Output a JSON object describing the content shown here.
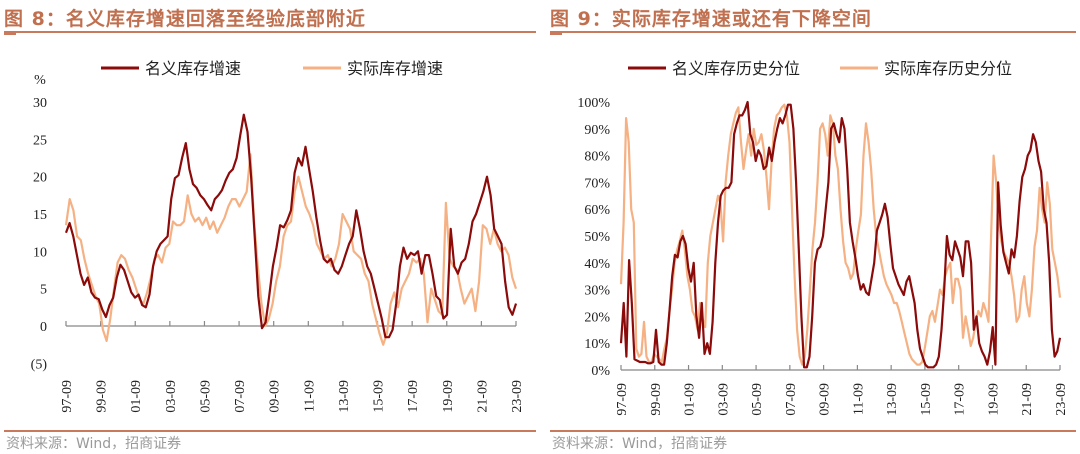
{
  "left": {
    "title": "图 8：名义库存增速回落至经验底部附近",
    "source": "资料来源：Wind，招商证券",
    "unit_label": "%"
  },
  "right": {
    "title": "图 9：实际库存增速或还有下降空间",
    "source": "资料来源：Wind，招商证券"
  },
  "chart_data": [
    {
      "type": "line",
      "title": "名义库存增速回落至经验底部附近",
      "ylabel": "%",
      "ylim": [
        -5,
        30
      ],
      "yticks": [
        30,
        25,
        20,
        15,
        10,
        5,
        0,
        -5
      ],
      "ytick_labels": [
        "30",
        "25",
        "20",
        "15",
        "10",
        "5",
        "0",
        "(5)"
      ],
      "xlabel": "",
      "x_start": "1997-09",
      "x_step": "quarter",
      "xtick_labels": [
        "97-09",
        "99-09",
        "01-09",
        "03-09",
        "05-09",
        "07-09",
        "09-09",
        "11-09",
        "13-09",
        "15-09",
        "17-09",
        "19-09",
        "21-09",
        "23-09"
      ],
      "legend": "top",
      "colors": [
        "#8b0a0a",
        "#f5b183"
      ],
      "series": [
        {
          "name": "名义库存增速",
          "values": [
            12.5,
            13.8,
            12,
            9.5,
            7,
            5.5,
            6.5,
            4.5,
            3.8,
            3.6,
            2.2,
            1.2,
            2.8,
            3.8,
            6.5,
            8.2,
            7.5,
            6,
            4.5,
            3.8,
            4.2,
            2.8,
            2.5,
            4.2,
            8,
            10,
            11,
            11.5,
            12,
            17,
            19.8,
            20.2,
            22.5,
            24.5,
            21,
            19,
            18.5,
            17.5,
            17,
            16.2,
            15.5,
            17,
            17.5,
            18.2,
            19.5,
            20.5,
            21,
            22.5,
            25.5,
            28.3,
            26,
            20,
            12,
            4,
            -0.3,
            0.5,
            4,
            8,
            10.5,
            13.5,
            13.2,
            14.2,
            15.5,
            20.5,
            22.5,
            21.5,
            24,
            21,
            18,
            14.5,
            11.5,
            9,
            8.5,
            9,
            7.5,
            7,
            8,
            9.5,
            11,
            12,
            15.5,
            13,
            10,
            8,
            7,
            5,
            3,
            1,
            -1.5,
            -1.5,
            -0.5,
            3,
            8,
            10.5,
            9,
            9.8,
            9.5,
            10,
            7,
            9.5,
            9.5,
            7,
            4,
            3.5,
            1,
            1.5,
            13,
            8,
            7,
            8.5,
            9,
            11,
            14,
            15,
            16.5,
            18,
            20,
            17.5,
            13,
            12,
            11,
            6,
            2.5,
            1.5,
            3
          ]
        },
        {
          "name": "实际库存增速",
          "values": [
            13.5,
            17,
            15.5,
            12,
            11.5,
            9,
            7,
            5.5,
            4,
            3,
            -0.5,
            -2,
            1,
            5,
            8.5,
            9.5,
            9,
            7.5,
            6.5,
            5,
            3.5,
            3,
            4.5,
            6.5,
            9,
            9.5,
            8.5,
            10.5,
            11,
            14,
            13.5,
            13.5,
            14,
            17.5,
            15,
            14,
            14.5,
            13.5,
            14.5,
            13,
            14,
            12.5,
            13.5,
            14.5,
            16,
            17,
            17,
            16,
            17,
            18,
            23,
            14,
            8,
            3,
            0,
            1,
            3,
            6,
            8,
            12,
            13.5,
            14,
            18,
            20,
            18,
            16,
            15,
            13.5,
            11,
            10,
            9,
            9.5,
            8,
            9,
            11,
            15,
            14,
            13,
            10,
            9.5,
            9,
            7,
            6,
            3,
            1,
            -1,
            -2.5,
            -1,
            3,
            4.5,
            2.5,
            5,
            6,
            7,
            9,
            8.5,
            9,
            7,
            0.5,
            5,
            3.5,
            2,
            1.5,
            16.5,
            9,
            8,
            7.5,
            5,
            3,
            4,
            5,
            2,
            6,
            13.5,
            13,
            11,
            13,
            11,
            10,
            10.5,
            9.5,
            6.5,
            5
          ]
        }
      ]
    },
    {
      "type": "line",
      "title": "实际库存增速或还有下降空间",
      "ylabel": "",
      "ylim": [
        0,
        100
      ],
      "yticks": [
        100,
        90,
        80,
        70,
        60,
        50,
        40,
        30,
        20,
        10,
        0
      ],
      "ytick_labels": [
        "100%",
        "90%",
        "80%",
        "70%",
        "60%",
        "50%",
        "40%",
        "30%",
        "20%",
        "10%",
        "0%"
      ],
      "xlabel": "",
      "x_start": "1997-09",
      "x_step": "quarter",
      "xtick_labels": [
        "97-09",
        "99-09",
        "01-09",
        "03-09",
        "05-09",
        "07-09",
        "09-09",
        "11-09",
        "13-09",
        "15-09",
        "17-09",
        "19-09",
        "21-09",
        "23-09"
      ],
      "legend": "top",
      "colors": [
        "#8b0a0a",
        "#f5b183"
      ],
      "series": [
        {
          "name": "名义库存历史分位",
          "values": [
            10,
            25,
            5,
            41,
            25,
            4,
            3.5,
            3,
            3,
            3,
            2.5,
            2.5,
            3,
            15,
            3,
            2,
            2,
            10,
            22,
            35,
            43,
            42,
            48,
            50,
            47,
            38,
            33,
            40,
            20,
            12,
            25,
            6,
            10,
            6,
            18,
            40,
            55,
            65,
            67,
            68,
            68,
            70,
            88,
            92,
            95,
            95,
            97,
            100,
            88,
            85,
            78,
            82,
            80,
            75,
            76,
            83,
            78,
            85,
            90,
            94,
            92,
            95,
            99,
            99,
            90,
            70,
            45,
            20,
            1,
            1,
            5,
            20,
            40,
            45,
            46,
            50,
            60,
            70,
            90,
            92,
            88,
            85,
            94,
            90,
            75,
            55,
            48,
            42,
            35,
            30,
            32,
            29,
            28,
            34,
            40,
            52,
            55,
            58,
            62,
            57,
            47,
            38,
            35,
            32,
            30,
            28,
            33,
            35,
            30,
            25,
            15,
            8,
            5,
            2,
            1,
            1,
            1,
            2,
            5,
            15,
            30,
            50,
            43,
            41,
            48,
            45,
            42,
            35,
            48,
            48,
            40,
            15,
            20,
            10,
            7,
            5,
            2,
            7,
            16,
            2,
            70,
            54,
            44,
            40,
            36,
            45,
            42,
            50,
            63,
            72,
            75,
            80,
            82,
            88,
            85,
            78,
            74,
            60,
            55,
            40,
            15,
            5,
            7,
            12
          ]
        },
        {
          "name": "实际库存历史分位",
          "values": [
            32,
            55,
            94,
            85,
            60,
            55,
            8,
            5,
            6,
            18,
            5,
            3,
            3,
            6,
            5,
            4,
            3,
            8,
            12,
            22,
            30,
            40,
            45,
            48,
            52,
            45,
            35,
            30,
            22,
            20,
            15,
            25,
            19,
            16,
            40,
            50,
            55,
            60,
            65,
            62,
            48,
            70,
            80,
            88,
            92,
            96,
            98,
            85,
            75,
            82,
            88,
            80,
            90,
            84,
            85,
            88,
            82,
            72,
            60,
            78,
            90,
            95,
            96,
            98,
            99,
            95,
            85,
            60,
            35,
            15,
            5,
            2,
            5,
            15,
            30,
            45,
            55,
            70,
            90,
            92,
            88,
            80,
            95,
            92,
            80,
            75,
            60,
            48,
            40,
            38,
            34,
            36,
            45,
            52,
            58,
            80,
            92,
            85,
            75,
            60,
            50,
            45,
            40,
            35,
            32,
            30,
            28,
            25,
            25,
            22,
            18,
            14,
            10,
            6,
            4,
            3,
            2,
            2,
            3,
            8,
            14,
            20,
            22,
            18,
            24,
            30,
            28,
            35,
            38,
            40,
            25,
            34,
            34,
            30,
            12,
            20,
            15,
            9,
            12,
            18,
            22,
            20,
            25,
            22,
            18,
            50,
            80,
            70,
            55,
            48,
            44,
            42,
            40,
            35,
            28,
            18,
            20,
            30,
            35,
            25,
            20,
            30,
            46,
            52,
            68,
            60,
            55,
            70,
            62,
            45,
            40,
            35,
            27
          ]
        }
      ]
    }
  ]
}
